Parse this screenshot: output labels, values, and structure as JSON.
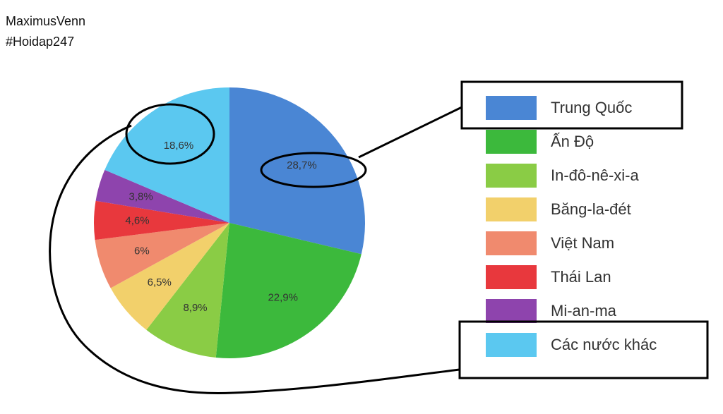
{
  "header": {
    "lines": [
      "MaximusVenn",
      "#Hoidap247"
    ]
  },
  "chart_data": {
    "type": "pie",
    "categories": [
      "Trung Quốc",
      "Ấn Độ",
      "In-đô-nê-xi-a",
      "Băng-la-đét",
      "Việt Nam",
      "Thái Lan",
      "Mi-an-ma",
      "Các nước khác"
    ],
    "values": [
      28.7,
      22.9,
      8.9,
      6.5,
      6,
      4.6,
      3.8,
      18.6
    ],
    "value_labels": [
      "28,7%",
      "22,9%",
      "8,9%",
      "6,5%",
      "6%",
      "4,6%",
      "3,8%",
      "18,6%"
    ],
    "colors": [
      "#4a86d4",
      "#3cb93c",
      "#8acc45",
      "#f2d06b",
      "#f08a6e",
      "#e8383d",
      "#8e44ad",
      "#5bc8f0"
    ],
    "legend": "right"
  }
}
